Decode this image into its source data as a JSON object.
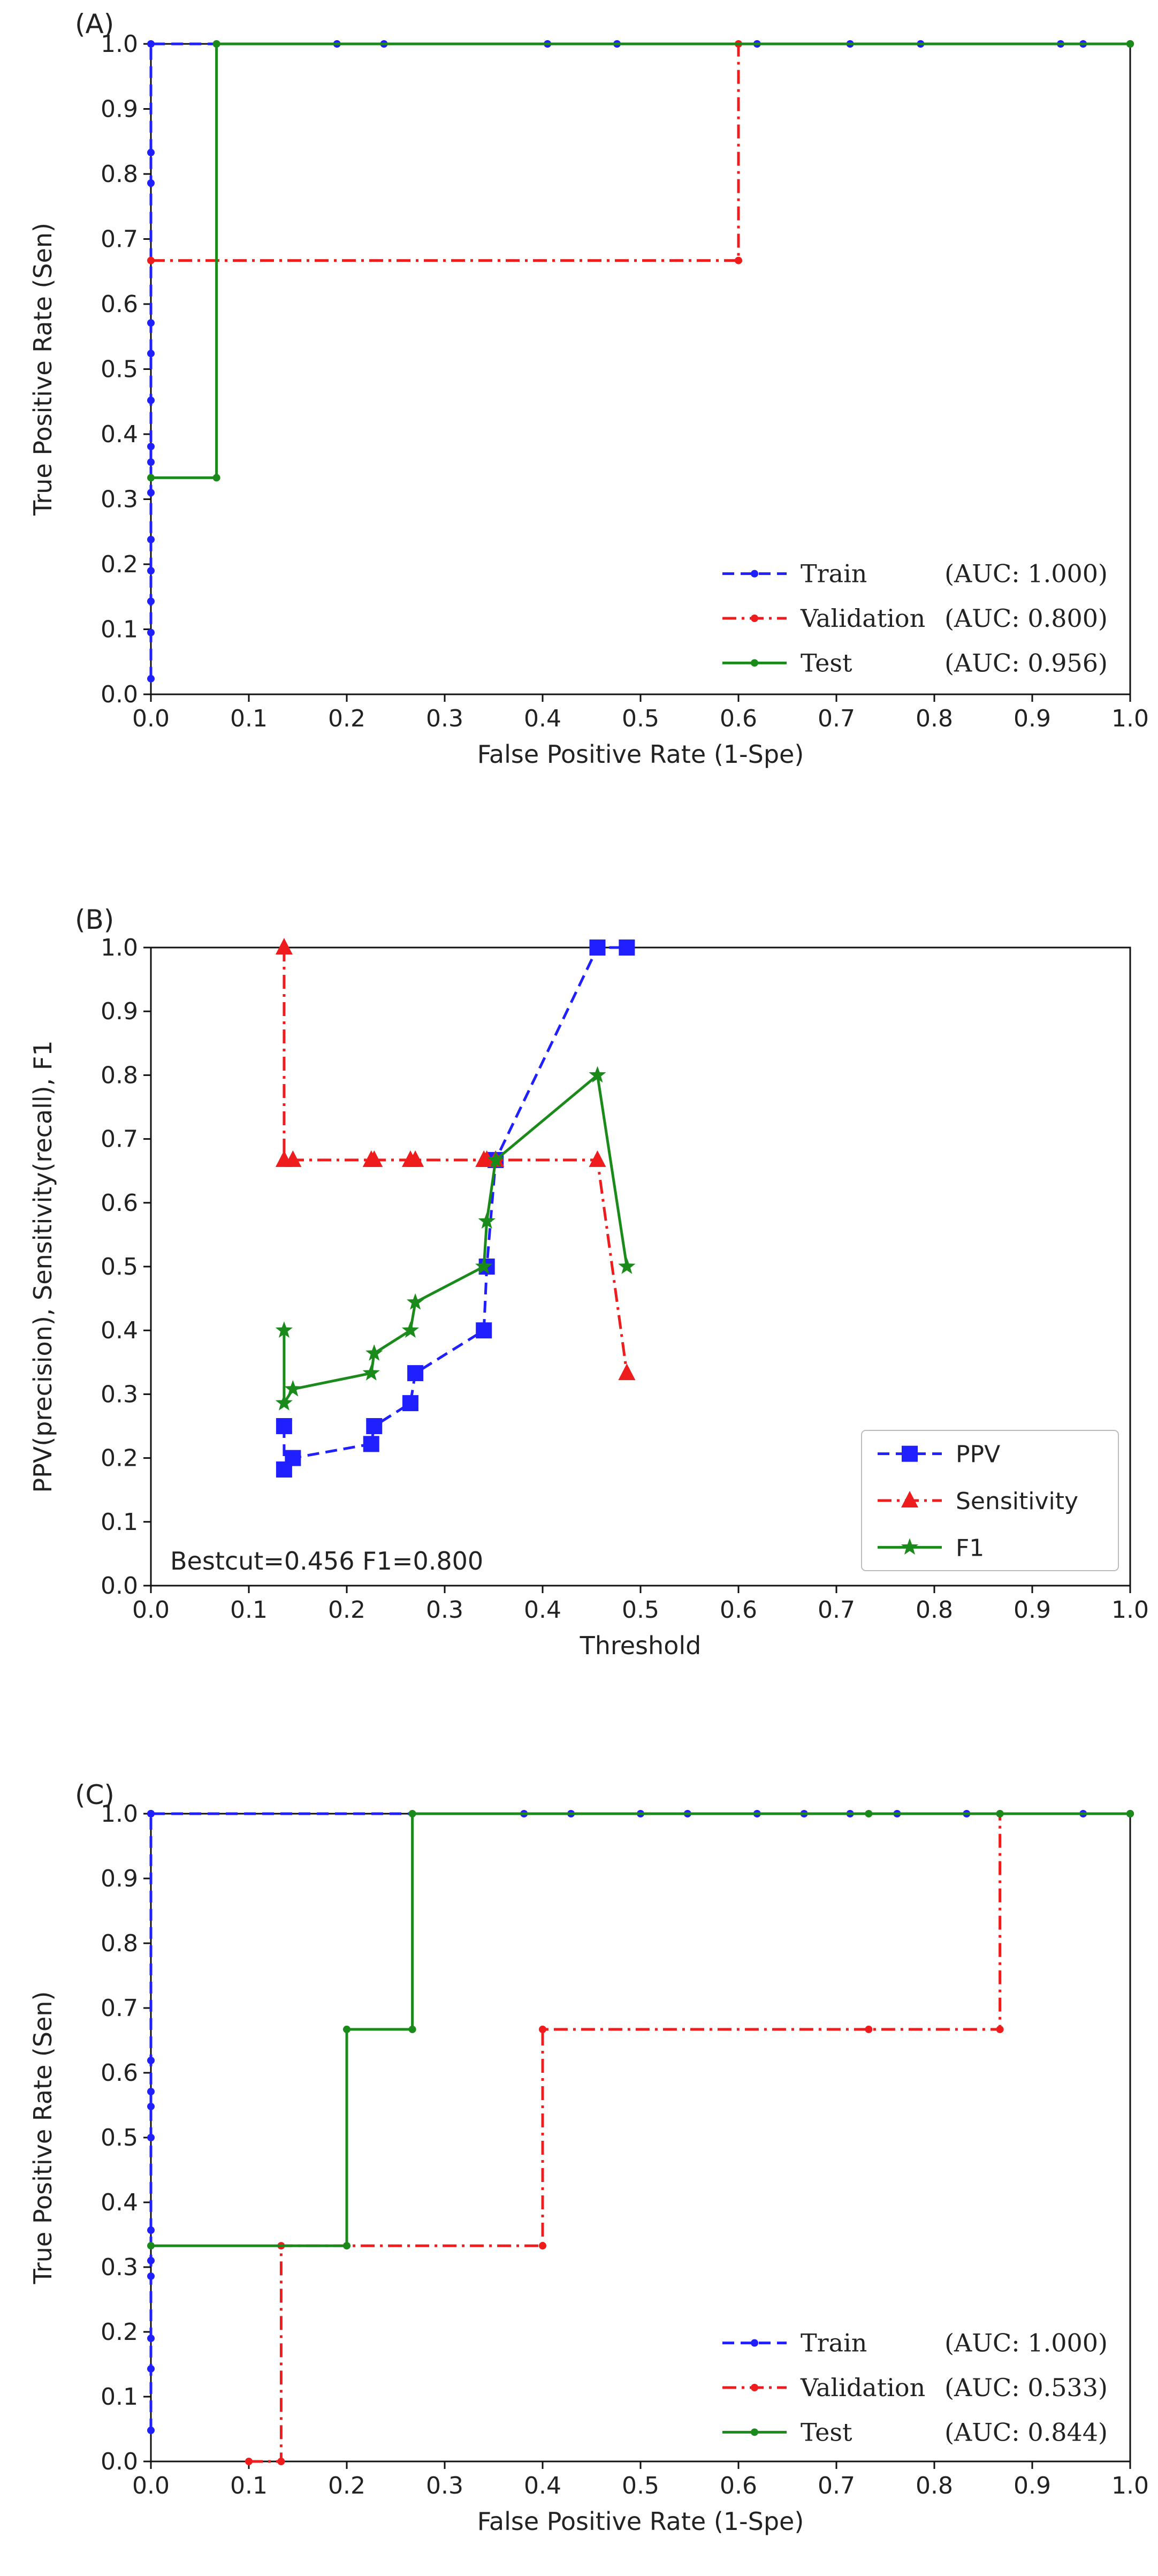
{
  "chart_data": [
    {
      "panel_label": "(A)",
      "type": "line",
      "title": "",
      "xlabel": "False Positive Rate (1-Spe)",
      "ylabel": "True Positive Rate (Sen)",
      "xlim": [
        0,
        1
      ],
      "ylim": [
        0,
        1
      ],
      "xticks": [
        "0.0",
        "0.1",
        "0.2",
        "0.3",
        "0.4",
        "0.5",
        "0.6",
        "0.7",
        "0.8",
        "0.9",
        "1.0"
      ],
      "yticks": [
        "0.0",
        "0.1",
        "0.2",
        "0.3",
        "0.4",
        "0.5",
        "0.6",
        "0.7",
        "0.8",
        "0.9",
        "1.0"
      ],
      "grid": false,
      "legend": {
        "placement": "bottom-right",
        "style": "serif",
        "entries": [
          {
            "name": "Train",
            "auc": "(AUC: 1.000)"
          },
          {
            "name": "Validation",
            "auc": "(AUC: 0.800)"
          },
          {
            "name": "Test",
            "auc": "(AUC: 0.956)"
          }
        ]
      },
      "series": [
        {
          "name": "Train",
          "color": "#1f1fff",
          "dash": "dashed",
          "marker": "dot",
          "x": [
            0,
            0,
            0,
            0,
            0,
            0,
            0,
            0,
            0,
            0,
            0,
            0,
            0,
            0,
            0.19,
            0.238,
            0.405,
            0.476,
            0.619,
            0.714,
            0.786,
            0.929,
            0.952,
            1.0
          ],
          "y": [
            0.024,
            0.095,
            0.143,
            0.19,
            0.238,
            0.31,
            0.357,
            0.381,
            0.452,
            0.524,
            0.571,
            0.786,
            0.833,
            1.0,
            1.0,
            1.0,
            1.0,
            1.0,
            1.0,
            1.0,
            1.0,
            1.0,
            1.0,
            1.0
          ]
        },
        {
          "name": "Validation",
          "color": "#ee1c1c",
          "dash": "dashdot",
          "marker": "dot",
          "x": [
            0,
            0.6,
            0.6,
            1.0
          ],
          "y": [
            0.667,
            0.667,
            1.0,
            1.0
          ]
        },
        {
          "name": "Test",
          "color": "#1a8a1a",
          "dash": "solid",
          "marker": "dot",
          "x": [
            0,
            0.067,
            0.067,
            1.0
          ],
          "y": [
            0.333,
            0.333,
            1.0,
            1.0
          ]
        }
      ]
    },
    {
      "panel_label": "(B)",
      "type": "line",
      "title": "",
      "xlabel": "Threshold",
      "ylabel": "PPV(precision), Sensitivity(recall), F1",
      "xlim": [
        0,
        1
      ],
      "ylim": [
        0,
        1
      ],
      "xticks": [
        "0.0",
        "0.1",
        "0.2",
        "0.3",
        "0.4",
        "0.5",
        "0.6",
        "0.7",
        "0.8",
        "0.9",
        "1.0"
      ],
      "yticks": [
        "0.0",
        "0.1",
        "0.2",
        "0.3",
        "0.4",
        "0.5",
        "0.6",
        "0.7",
        "0.8",
        "0.9",
        "1.0"
      ],
      "grid": false,
      "annotation": "Bestcut=0.456 F1=0.800",
      "legend": {
        "placement": "bottom-right",
        "style": "sans",
        "entries": [
          {
            "name": "PPV"
          },
          {
            "name": "Sensitivity"
          },
          {
            "name": "F1"
          }
        ]
      },
      "series": [
        {
          "name": "PPV",
          "color": "#1f1fff",
          "dash": "dashed",
          "marker": "square",
          "x": [
            0.136,
            0.136,
            0.145,
            0.225,
            0.228,
            0.265,
            0.27,
            0.34,
            0.343,
            0.352,
            0.456,
            0.486
          ],
          "y": [
            0.25,
            0.182,
            0.2,
            0.222,
            0.25,
            0.286,
            0.333,
            0.4,
            0.5,
            0.667,
            1.0,
            1.0
          ]
        },
        {
          "name": "Sensitivity",
          "color": "#ee1c1c",
          "dash": "dashdot",
          "marker": "triangle",
          "x": [
            0.136,
            0.136,
            0.145,
            0.225,
            0.228,
            0.265,
            0.27,
            0.34,
            0.343,
            0.352,
            0.456,
            0.486
          ],
          "y": [
            1.0,
            0.667,
            0.667,
            0.667,
            0.667,
            0.667,
            0.667,
            0.667,
            0.667,
            0.667,
            0.667,
            0.333
          ]
        },
        {
          "name": "F1",
          "color": "#1a8a1a",
          "dash": "solid",
          "marker": "star",
          "x": [
            0.136,
            0.136,
            0.145,
            0.225,
            0.228,
            0.265,
            0.27,
            0.34,
            0.343,
            0.352,
            0.456,
            0.486
          ],
          "y": [
            0.4,
            0.286,
            0.308,
            0.333,
            0.364,
            0.4,
            0.444,
            0.5,
            0.571,
            0.667,
            0.8,
            0.5
          ]
        }
      ]
    },
    {
      "panel_label": "(C)",
      "type": "line",
      "title": "",
      "xlabel": "False Positive Rate (1-Spe)",
      "ylabel": "True Positive Rate (Sen)",
      "xlim": [
        0,
        1
      ],
      "ylim": [
        0,
        1
      ],
      "xticks": [
        "0.0",
        "0.1",
        "0.2",
        "0.3",
        "0.4",
        "0.5",
        "0.6",
        "0.7",
        "0.8",
        "0.9",
        "1.0"
      ],
      "yticks": [
        "0.0",
        "0.1",
        "0.2",
        "0.3",
        "0.4",
        "0.5",
        "0.6",
        "0.7",
        "0.8",
        "0.9",
        "1.0"
      ],
      "grid": false,
      "legend": {
        "placement": "bottom-right",
        "style": "serif",
        "entries": [
          {
            "name": "Train",
            "auc": "(AUC: 1.000)"
          },
          {
            "name": "Validation",
            "auc": "(AUC: 0.533)"
          },
          {
            "name": "Test",
            "auc": "(AUC: 0.844)"
          }
        ]
      },
      "series": [
        {
          "name": "Train",
          "color": "#1f1fff",
          "dash": "dashed",
          "marker": "dot",
          "x": [
            0,
            0,
            0,
            0,
            0,
            0,
            0,
            0,
            0,
            0,
            0,
            0,
            0,
            0.381,
            0.429,
            0.5,
            0.548,
            0.619,
            0.667,
            0.714,
            0.762,
            0.833,
            0.952,
            1.0
          ],
          "y": [
            0.048,
            0.143,
            0.19,
            0.286,
            0.31,
            0.357,
            0.5,
            0.548,
            0.571,
            0.619,
            1.0,
            1.0,
            1.0,
            1.0,
            1.0,
            1.0,
            1.0,
            1.0,
            1.0,
            1.0,
            1.0,
            1.0,
            1.0,
            1.0
          ]
        },
        {
          "name": "Validation",
          "color": "#ee1c1c",
          "dash": "dashdot",
          "marker": "dot",
          "x": [
            0.1,
            0.133,
            0.133,
            0.4,
            0.4,
            0.733,
            0.867,
            0.867,
            1.0
          ],
          "y": [
            0.0,
            0.0,
            0.333,
            0.333,
            0.667,
            0.667,
            0.667,
            1.0,
            1.0
          ]
        },
        {
          "name": "Test",
          "color": "#1a8a1a",
          "dash": "solid",
          "marker": "dot",
          "x": [
            0,
            0.2,
            0.2,
            0.267,
            0.267,
            0.733,
            0.867,
            1.0
          ],
          "y": [
            0.333,
            0.333,
            0.667,
            0.667,
            1.0,
            1.0,
            1.0,
            1.0
          ]
        }
      ]
    }
  ]
}
